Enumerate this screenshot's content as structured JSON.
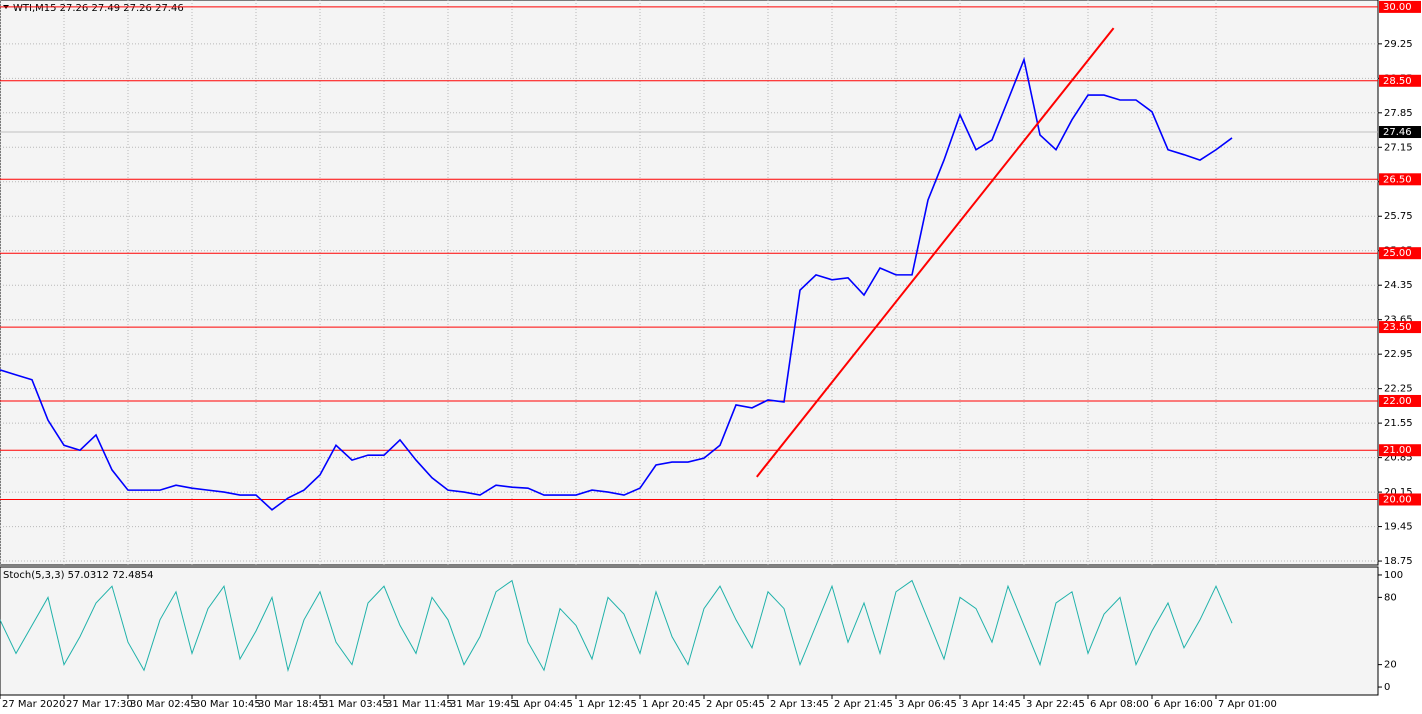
{
  "chart_data": [
    {
      "type": "line",
      "title": "WTI,M15  27.26 27.49 27.26 27.46",
      "categories": [
        "27 Mar 2020",
        null,
        null,
        null,
        "27 Mar 17:30",
        null,
        null,
        null,
        "30 Mar 02:45",
        null,
        null,
        null,
        "30 Mar 10:45",
        null,
        null,
        null,
        "30 Mar 18:45",
        null,
        null,
        null,
        "31 Mar 03:45",
        null,
        null,
        null,
        "31 Mar 11:45",
        null,
        null,
        null,
        "31 Mar 19:45",
        null,
        null,
        null,
        "1 Apr 04:45",
        null,
        null,
        null,
        "1 Apr 12:45",
        null,
        null,
        null,
        "1 Apr 20:45",
        null,
        null,
        null,
        "2 Apr 05:45",
        null,
        null,
        null,
        "2 Apr 13:45",
        null,
        null,
        null,
        "2 Apr 21:45",
        null,
        null,
        null,
        "3 Apr 06:45",
        null,
        null,
        null,
        "3 Apr 14:45",
        null,
        null,
        null,
        "3 Apr 22:45",
        null,
        null,
        null,
        "6 Apr 08:00",
        null,
        null,
        null,
        "6 Apr 16:00",
        null,
        null,
        null,
        "7 Apr 01:00",
        null
      ],
      "values": [
        22.63,
        22.53,
        22.43,
        21.61,
        21.1,
        21.0,
        21.31,
        20.6,
        20.19,
        20.19,
        20.19,
        20.29,
        20.23,
        20.19,
        20.15,
        20.09,
        20.09,
        19.79,
        20.03,
        20.19,
        20.5,
        21.1,
        20.8,
        20.9,
        20.9,
        21.21,
        20.8,
        20.44,
        20.19,
        20.15,
        20.09,
        20.29,
        20.25,
        20.23,
        20.09,
        20.09,
        20.09,
        20.19,
        20.15,
        20.09,
        20.23,
        20.7,
        20.76,
        20.76,
        20.84,
        21.1,
        21.92,
        21.86,
        22.02,
        21.98,
        24.25,
        24.56,
        24.46,
        24.5,
        24.15,
        24.7,
        24.56,
        24.56,
        26.08,
        26.89,
        27.81,
        27.1,
        27.3,
        28.11,
        28.93,
        27.4,
        27.1,
        27.71,
        28.21,
        28.21,
        28.11,
        28.11,
        27.87,
        27.1,
        27.0,
        26.89,
        27.1,
        27.34
      ],
      "color": "#0000ff",
      "ylim": [
        18.67,
        30.14
      ],
      "yticks": [
        18.75,
        19.45,
        20.15,
        20.85,
        21.55,
        22.25,
        22.95,
        23.65,
        24.35,
        25.05,
        25.75,
        26.45,
        27.15,
        27.85,
        28.55,
        29.25
      ],
      "levels": [
        {
          "value": 30,
          "label": "30.00"
        },
        {
          "value": 28.5,
          "label": "28.50"
        },
        {
          "value": 26.5,
          "label": "26.50"
        },
        {
          "value": 25,
          "label": "25.00"
        },
        {
          "value": 23.5,
          "label": "23.50"
        },
        {
          "value": 22,
          "label": "22.00"
        },
        {
          "value": 21,
          "label": "21.00"
        },
        {
          "value": 20,
          "label": "20.00"
        }
      ],
      "level_color": "#ff0000",
      "current_price": {
        "value": 27.46,
        "label": "27.46"
      },
      "trend_line": {
        "x": [
          47.3,
          69.6
        ],
        "y": [
          20.46,
          29.57
        ],
        "color": "#ff0000"
      },
      "grid": true
    },
    {
      "type": "line",
      "title": "Stoch(5,3,3) 57.0312 72.4854",
      "values": [
        60,
        30,
        55,
        80,
        20,
        45,
        75,
        90,
        40,
        15,
        60,
        85,
        30,
        70,
        90,
        25,
        50,
        80,
        15,
        60,
        85,
        40,
        20,
        75,
        90,
        55,
        30,
        80,
        60,
        20,
        45,
        85,
        95,
        40,
        15,
        70,
        55,
        25,
        80,
        65,
        30,
        85,
        45,
        20,
        70,
        90,
        60,
        35,
        85,
        70,
        20,
        55,
        90,
        40,
        75,
        30,
        85,
        95,
        60,
        25,
        80,
        70,
        40,
        90,
        55,
        20,
        75,
        85,
        30,
        65,
        80,
        20,
        50,
        75,
        35,
        60,
        90,
        57
      ],
      "color": "#20b2aa",
      "ylim": [
        -7.1,
        107.1
      ],
      "yticks": [
        0,
        20,
        80,
        100
      ],
      "grid": false
    }
  ]
}
